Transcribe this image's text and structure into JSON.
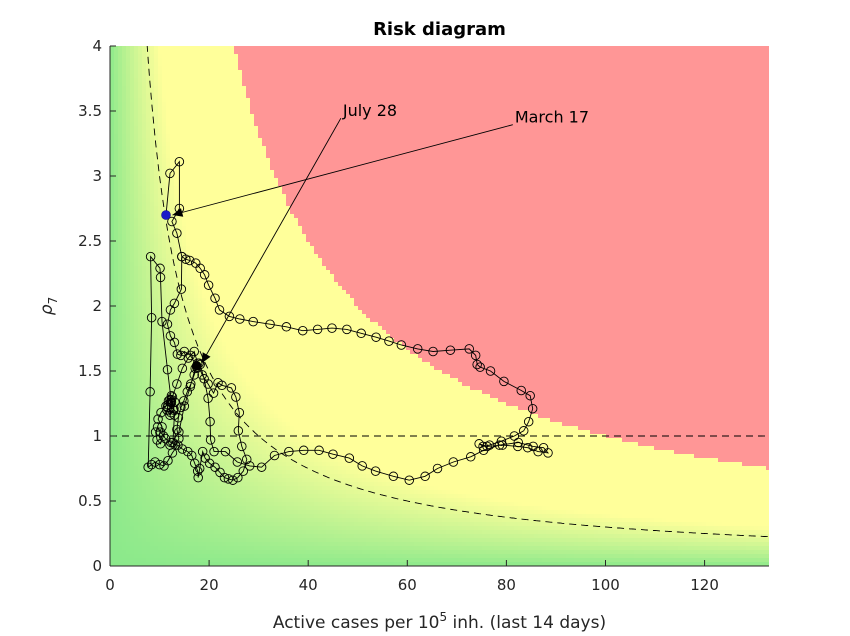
{
  "chart_data": {
    "type": "scatter",
    "title": "Risk diagram",
    "xlabel_main": "Active cases per 10",
    "xlabel_sup": "5",
    "xlabel_rest": " inh. (last 14 days)",
    "ylabel_main": "ρ",
    "ylabel_sub": "7",
    "xlim": [
      0,
      133
    ],
    "ylim": [
      0,
      4
    ],
    "xticks": [
      {
        "value": 0,
        "label": "0"
      },
      {
        "value": 20,
        "label": "20"
      },
      {
        "value": 40,
        "label": "40"
      },
      {
        "value": 60,
        "label": "60"
      },
      {
        "value": 80,
        "label": "80"
      },
      {
        "value": 100,
        "label": "100"
      },
      {
        "value": 120,
        "label": "120"
      }
    ],
    "yticks": [
      {
        "value": 0,
        "label": "0"
      },
      {
        "value": 0.5,
        "label": "0.5"
      },
      {
        "value": 1,
        "label": "1"
      },
      {
        "value": 1.5,
        "label": "1.5"
      },
      {
        "value": 2,
        "label": "2"
      },
      {
        "value": 2.5,
        "label": "2.5"
      },
      {
        "value": 3,
        "label": "3"
      },
      {
        "value": 3.5,
        "label": "3.5"
      },
      {
        "value": 4,
        "label": "4"
      }
    ],
    "background": {
      "colors": {
        "low": "#8be98b",
        "mid": "#ffff9a",
        "high": "#ff9696"
      },
      "high_threshold": 100,
      "mid_value": 40
    },
    "reference_curve_k": 30,
    "reference_line_y": 1,
    "trajectory": {
      "color": "#000000",
      "points": [
        [
          11.3,
          2.7
        ],
        [
          12.1,
          3.02
        ],
        [
          14,
          3.11
        ],
        [
          14,
          2.75
        ],
        [
          12.5,
          2.65
        ],
        [
          13.5,
          2.56
        ],
        [
          14.5,
          2.38
        ],
        [
          14.4,
          2.13
        ],
        [
          13,
          2.02
        ],
        [
          12.2,
          1.97
        ],
        [
          11.6,
          1.86
        ],
        [
          12.2,
          1.77
        ],
        [
          13,
          1.72
        ],
        [
          13.6,
          1.63
        ],
        [
          14.3,
          1.62
        ],
        [
          15,
          1.65
        ],
        [
          16.2,
          1.62
        ],
        [
          17.5,
          1.54
        ],
        [
          18,
          1.56
        ],
        [
          17.5,
          1.53
        ],
        [
          17,
          1.47
        ],
        [
          16.3,
          1.4
        ],
        [
          15.6,
          1.34
        ],
        [
          14.9,
          1.27
        ],
        [
          14.3,
          1.22
        ],
        [
          13.8,
          1.14
        ],
        [
          13.5,
          1.05
        ],
        [
          13.9,
          0.98
        ],
        [
          13.2,
          0.93
        ],
        [
          12.3,
          0.95
        ],
        [
          11.2,
          0.98
        ],
        [
          10.2,
          1.03
        ],
        [
          9.6,
          1.07
        ],
        [
          9.2,
          1.03
        ],
        [
          9.5,
          0.97
        ],
        [
          10.2,
          0.94
        ],
        [
          10.8,
          1.0
        ],
        [
          10.5,
          1.07
        ],
        [
          9.7,
          1.13
        ],
        [
          10.3,
          1.18
        ],
        [
          11.3,
          1.23
        ],
        [
          12.1,
          1.28
        ],
        [
          12.6,
          1.3
        ],
        [
          12.2,
          1.26
        ],
        [
          11.7,
          1.24
        ],
        [
          11.5,
          1.2
        ],
        [
          12.1,
          1.16
        ],
        [
          12.8,
          1.2
        ],
        [
          13.1,
          1.26
        ],
        [
          12.4,
          1.31
        ],
        [
          11.8,
          1.27
        ],
        [
          11.6,
          1.22
        ],
        [
          12.3,
          1.18
        ],
        [
          12.9,
          1.21
        ],
        [
          12.4,
          1.28
        ],
        [
          13.5,
          1.4
        ],
        [
          14.6,
          1.52
        ],
        [
          15.8,
          1.6
        ],
        [
          17,
          1.65
        ],
        [
          17.7,
          1.56
        ],
        [
          18.6,
          1.47
        ],
        [
          19.8,
          1.4
        ],
        [
          20.9,
          1.33
        ],
        [
          21.8,
          1.41
        ],
        [
          22.6,
          1.39
        ],
        [
          24.5,
          1.37
        ],
        [
          25.4,
          1.3
        ],
        [
          26.1,
          1.18
        ],
        [
          25.9,
          1.04
        ],
        [
          26.6,
          0.92
        ],
        [
          27.6,
          0.82
        ],
        [
          26.9,
          0.73
        ],
        [
          25.8,
          0.68
        ],
        [
          24.8,
          0.66
        ],
        [
          23.9,
          0.67
        ],
        [
          23.1,
          0.68
        ],
        [
          22.2,
          0.72
        ],
        [
          21.2,
          0.76
        ],
        [
          20.1,
          0.79
        ],
        [
          19.2,
          0.83
        ],
        [
          18.7,
          0.88
        ],
        [
          18.1,
          0.75
        ],
        [
          17.8,
          0.68
        ],
        [
          17.7,
          0.73
        ],
        [
          17.1,
          0.79
        ],
        [
          16.5,
          0.85
        ],
        [
          15.7,
          0.88
        ],
        [
          14.6,
          0.9
        ],
        [
          13.7,
          0.93
        ],
        [
          12.6,
          0.87
        ],
        [
          11.7,
          0.81
        ],
        [
          10.9,
          0.77
        ],
        [
          10,
          0.78
        ],
        [
          9.1,
          0.8
        ],
        [
          8.4,
          0.78
        ],
        [
          7.7,
          0.76
        ],
        [
          8.1,
          1.34
        ],
        [
          8.4,
          1.91
        ],
        [
          8.2,
          2.38
        ],
        [
          10.1,
          2.29
        ],
        [
          10.2,
          2.22
        ],
        [
          10.5,
          1.88
        ],
        [
          11.6,
          1.51
        ],
        [
          12.4,
          1.26
        ],
        [
          13,
          1.16
        ],
        [
          12.7,
          0.95
        ],
        [
          12.1,
          0.93
        ],
        [
          13.9,
          1.03
        ],
        [
          15,
          1.23
        ],
        [
          16.2,
          1.38
        ],
        [
          17.2,
          1.52
        ],
        [
          18.2,
          1.55
        ],
        [
          19,
          1.44
        ],
        [
          19.8,
          1.29
        ],
        [
          20.2,
          1.11
        ],
        [
          20.3,
          0.97
        ],
        [
          21,
          0.88
        ],
        [
          23.3,
          0.88
        ],
        [
          25.7,
          0.8
        ],
        [
          28.2,
          0.77
        ],
        [
          30.6,
          0.76
        ],
        [
          33.2,
          0.85
        ],
        [
          36.1,
          0.88
        ],
        [
          39.1,
          0.89
        ],
        [
          42.2,
          0.89
        ],
        [
          45,
          0.86
        ],
        [
          48.3,
          0.83
        ],
        [
          50.9,
          0.77
        ],
        [
          53.6,
          0.73
        ],
        [
          57.2,
          0.69
        ],
        [
          60.4,
          0.66
        ],
        [
          63.6,
          0.69
        ],
        [
          66.1,
          0.75
        ],
        [
          69.3,
          0.8
        ],
        [
          72.8,
          0.84
        ],
        [
          75.4,
          0.89
        ],
        [
          78.6,
          0.93
        ],
        [
          82.4,
          0.95
        ],
        [
          85.4,
          0.92
        ],
        [
          87.5,
          0.91
        ],
        [
          88.4,
          0.87
        ],
        [
          86.4,
          0.88
        ],
        [
          84.3,
          0.91
        ],
        [
          82.3,
          0.92
        ],
        [
          79.2,
          0.93
        ],
        [
          76.1,
          0.92
        ],
        [
          74.5,
          0.94
        ],
        [
          75.3,
          0.92
        ],
        [
          76.6,
          0.93
        ],
        [
          79,
          0.96
        ],
        [
          81.6,
          1.0
        ],
        [
          83.5,
          1.04
        ],
        [
          84.5,
          1.11
        ],
        [
          85.3,
          1.21
        ],
        [
          84.8,
          1.31
        ],
        [
          83,
          1.35
        ],
        [
          79.5,
          1.42
        ],
        [
          76.8,
          1.5
        ],
        [
          74.7,
          1.53
        ],
        [
          74.1,
          1.55
        ],
        [
          73.8,
          1.62
        ],
        [
          72.5,
          1.67
        ],
        [
          68.7,
          1.66
        ],
        [
          65.2,
          1.65
        ],
        [
          62.1,
          1.67
        ],
        [
          58.8,
          1.7
        ],
        [
          56.3,
          1.73
        ],
        [
          53.7,
          1.76
        ],
        [
          50.7,
          1.79
        ],
        [
          47.8,
          1.82
        ],
        [
          44.8,
          1.83
        ],
        [
          41.9,
          1.82
        ],
        [
          38.9,
          1.81
        ],
        [
          35.6,
          1.84
        ],
        [
          32.3,
          1.86
        ],
        [
          28.9,
          1.88
        ],
        [
          26.2,
          1.9
        ],
        [
          24.1,
          1.92
        ],
        [
          22.1,
          1.97
        ],
        [
          21.2,
          2.06
        ],
        [
          19.9,
          2.16
        ],
        [
          19.1,
          2.24
        ],
        [
          18.2,
          2.29
        ],
        [
          17.3,
          2.33
        ],
        [
          16.1,
          2.35
        ],
        [
          15.3,
          2.36
        ],
        [
          14.5,
          2.38
        ]
      ]
    },
    "markers": {
      "start": {
        "x": 11.3,
        "y": 2.7,
        "color": "#1b1bc8"
      },
      "end": {
        "x": 17.5,
        "y": 1.54,
        "color": "#000000"
      }
    },
    "annotations": [
      {
        "text": "March 17",
        "x": 81.7,
        "y": 3.41,
        "point_x": 12.6,
        "point_y": 2.7
      },
      {
        "text": "July 28",
        "x": 47,
        "y": 3.46,
        "point_x": 18.5,
        "point_y": 1.56
      }
    ]
  }
}
